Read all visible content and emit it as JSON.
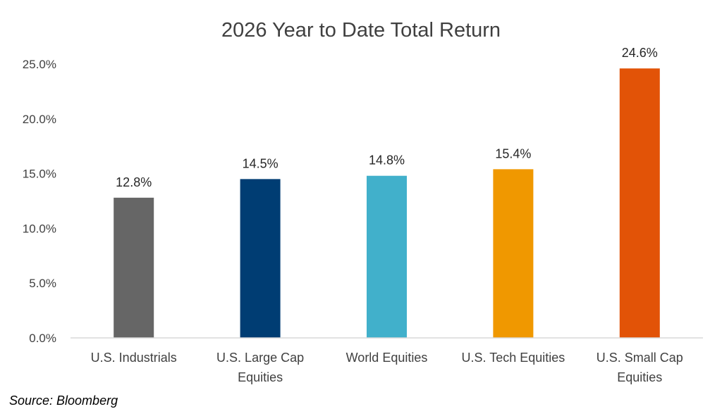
{
  "chart_data": {
    "type": "bar",
    "title": "2026 Year to Date Total Return",
    "categories": [
      [
        "U.S. Industrials"
      ],
      [
        "U.S. Large Cap",
        "Equities"
      ],
      [
        "World Equities"
      ],
      [
        "U.S. Tech Equities"
      ],
      [
        "U.S. Small Cap",
        "Equities"
      ]
    ],
    "values": [
      12.8,
      14.5,
      14.8,
      15.4,
      24.6
    ],
    "value_labels": [
      "12.8%",
      "14.5%",
      "14.8%",
      "15.4%",
      "24.6%"
    ],
    "bar_colors": [
      "#666666",
      "#003D73",
      "#41B0CB",
      "#F09800",
      "#E25307"
    ],
    "ylim": [
      0,
      25
    ],
    "y_ticks": [
      0,
      5,
      10,
      15,
      20,
      25
    ],
    "y_tick_labels": [
      "0.0%",
      "5.0%",
      "10.0%",
      "15.0%",
      "20.0%",
      "25.0%"
    ],
    "grid": false,
    "axis_color": "#D9D9D9"
  },
  "source_text": "Source: Bloomberg"
}
